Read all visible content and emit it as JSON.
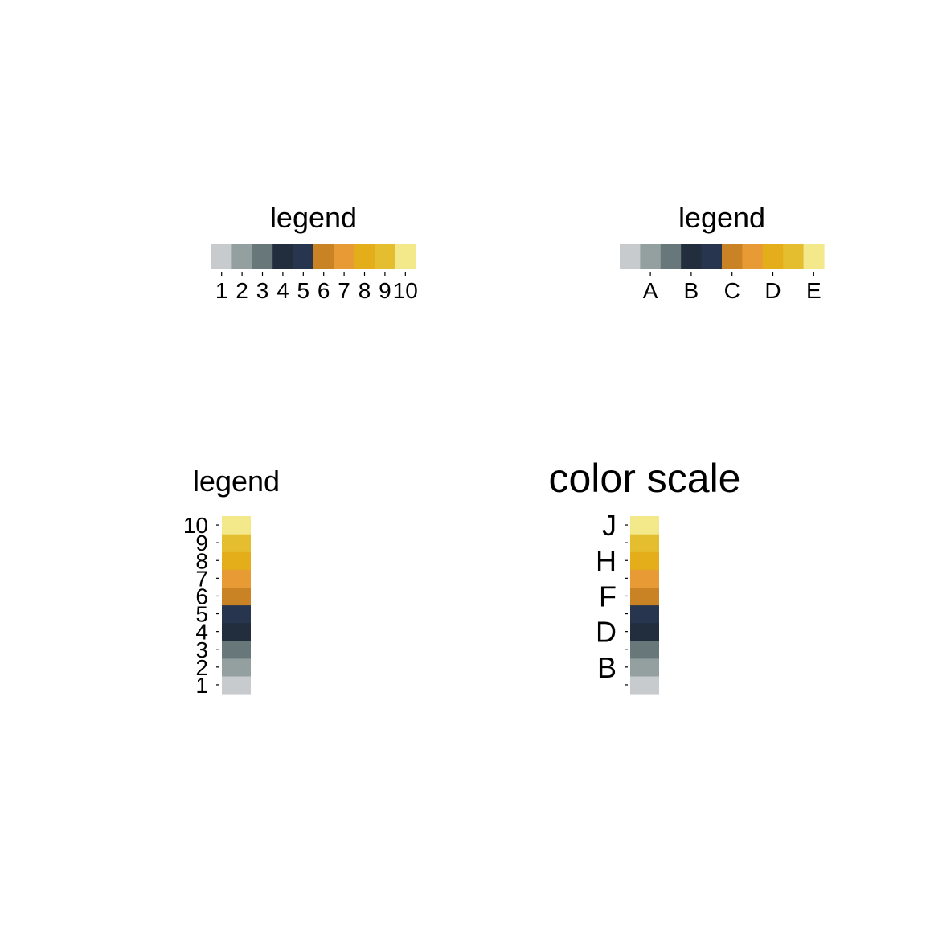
{
  "palette": [
    "#c8cbcd",
    "#93a09f",
    "#68777a",
    "#222d3e",
    "#27364e",
    "#c98224",
    "#e89a34",
    "#e4ae1b",
    "#e4be2e",
    "#f3e98a"
  ],
  "chart_data": [
    {
      "type": "legend",
      "orientation": "horizontal",
      "title": "legend",
      "tick_labels": [
        "1",
        "2",
        "3",
        "4",
        "5",
        "6",
        "7",
        "8",
        "9",
        "10"
      ],
      "tick_positions": [
        1,
        2,
        3,
        4,
        5,
        6,
        7,
        8,
        9,
        10
      ]
    },
    {
      "type": "legend",
      "orientation": "horizontal",
      "title": "legend",
      "tick_labels": [
        "A",
        "B",
        "C",
        "D",
        "E"
      ],
      "tick_positions": [
        2,
        4,
        6,
        8,
        10
      ]
    },
    {
      "type": "legend",
      "orientation": "vertical",
      "title": "legend",
      "tick_labels": [
        "1",
        "2",
        "3",
        "4",
        "5",
        "6",
        "7",
        "8",
        "9",
        "10"
      ],
      "tick_positions": [
        1,
        2,
        3,
        4,
        5,
        6,
        7,
        8,
        9,
        10
      ]
    },
    {
      "type": "legend",
      "orientation": "vertical",
      "title": "color scale",
      "tick_labels": [
        "B",
        "D",
        "F",
        "H",
        "J"
      ],
      "tick_positions": [
        2,
        4,
        6,
        8,
        10
      ],
      "minor_ticks": [
        1,
        2,
        3,
        4,
        5,
        6,
        7,
        8,
        9,
        10
      ]
    }
  ]
}
